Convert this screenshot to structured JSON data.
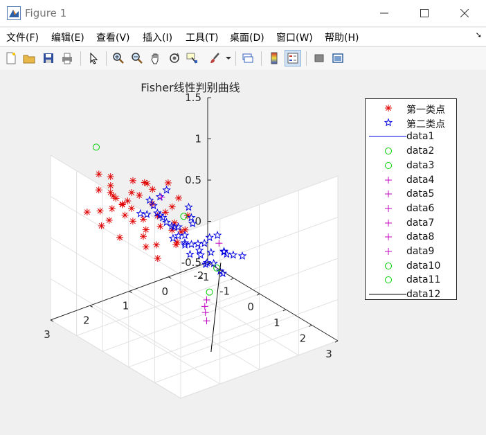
{
  "window": {
    "title": "Figure 1"
  },
  "menu": [
    "文件(F)",
    "编辑(E)",
    "查看(V)",
    "插入(I)",
    "工具(T)",
    "桌面(D)",
    "窗口(W)",
    "帮助(H)"
  ],
  "toolbar": {
    "icons": [
      "new-figure-icon",
      "open-file-icon",
      "save-icon",
      "print-icon",
      "pointer-icon",
      "zoom-in-icon",
      "zoom-out-icon",
      "pan-icon",
      "rotate-3d-icon",
      "data-cursor-icon",
      "brush-icon",
      "link-plot-icon",
      "colorbar-icon",
      "legend-icon",
      "hide-plot-tools-icon",
      "show-plot-tools-icon"
    ],
    "pressed": [
      "legend-icon"
    ]
  },
  "colors": {
    "red": "#e00000",
    "blue": "#0000e0",
    "green": "#00d000",
    "magenta": "#c000c0",
    "black": "#000000"
  },
  "chart_data": {
    "type": "scatter",
    "title": "Fisher线性判别曲线",
    "xlim": [
      -2,
      3
    ],
    "ylim": [
      -1,
      3
    ],
    "zlim": [
      -0.5,
      1.5
    ],
    "xticks": [
      -2,
      -1,
      0,
      1,
      2,
      3
    ],
    "yticks": [
      -1,
      0,
      1,
      2,
      3
    ],
    "zticks": [
      -0.5,
      0,
      0.5,
      1,
      1.5
    ],
    "xlabel": "",
    "ylabel": "",
    "zlabel": "",
    "grid": true,
    "legend_position": "right, outside",
    "series": [
      {
        "name": "第一类点",
        "marker": "asterisk",
        "color": "#e00000",
        "points": [
          [
            -1.3,
            1.8,
            0.9
          ],
          [
            -1.1,
            2.0,
            1.0
          ],
          [
            -0.9,
            2.2,
            1.2
          ],
          [
            -0.7,
            1.9,
            1.0
          ],
          [
            -0.5,
            2.1,
            0.9
          ],
          [
            -0.3,
            2.3,
            1.1
          ],
          [
            -0.1,
            2.0,
            1.2
          ],
          [
            0.1,
            1.8,
            1.1
          ],
          [
            -1.0,
            1.6,
            0.8
          ],
          [
            -0.8,
            1.7,
            0.7
          ],
          [
            -0.6,
            1.5,
            0.6
          ],
          [
            -0.4,
            1.7,
            0.8
          ],
          [
            -0.2,
            1.4,
            0.7
          ],
          [
            0.0,
            1.6,
            0.9
          ],
          [
            0.2,
            1.3,
            0.8
          ],
          [
            -1.2,
            2.3,
            1.3
          ],
          [
            -0.9,
            2.5,
            1.2
          ],
          [
            -0.6,
            2.4,
            1.4
          ],
          [
            -0.3,
            2.6,
            1.3
          ],
          [
            0.0,
            2.5,
            1.2
          ],
          [
            -1.4,
            2.1,
            0.6
          ],
          [
            -1.0,
            1.9,
            0.5
          ],
          [
            -0.7,
            1.5,
            0.5
          ],
          [
            -0.5,
            1.3,
            0.4
          ],
          [
            -0.2,
            1.1,
            0.6
          ],
          [
            0.1,
            1.2,
            0.5
          ],
          [
            -0.9,
            1.3,
            0.3
          ],
          [
            -0.6,
            1.2,
            0.2
          ],
          [
            -0.3,
            0.9,
            0.4
          ],
          [
            0.0,
            1.0,
            0.6
          ],
          [
            -1.1,
            1.5,
            1.1
          ],
          [
            -0.8,
            1.2,
            1.0
          ],
          [
            -0.5,
            1.0,
            1.1
          ],
          [
            -0.2,
            1.8,
            1.3
          ],
          [
            0.2,
            2.0,
            1.4
          ],
          [
            0.3,
            1.6,
            1.0
          ],
          [
            -1.6,
            1.7,
            0.7
          ],
          [
            -1.3,
            1.4,
            0.9
          ],
          [
            -0.4,
            0.8,
            0.9
          ],
          [
            0.1,
            0.9,
            0.8
          ],
          [
            0.3,
            1.1,
            0.7
          ],
          [
            -0.7,
            2.6,
            1.0
          ],
          [
            -0.2,
            2.7,
            1.0
          ],
          [
            -1.5,
            2.4,
            0.8
          ],
          [
            -0.8,
            0.7,
            0.7
          ]
        ]
      },
      {
        "name": "第二类点",
        "marker": "pentagram",
        "color": "#0000e0",
        "points": [
          [
            1.0,
            2.2,
            1.2
          ],
          [
            1.2,
            2.4,
            1.3
          ],
          [
            1.4,
            2.0,
            1.1
          ],
          [
            1.6,
            2.3,
            1.2
          ],
          [
            1.8,
            2.1,
            1.0
          ],
          [
            2.0,
            2.5,
            1.3
          ],
          [
            2.2,
            2.2,
            1.4
          ],
          [
            1.1,
            1.8,
            0.9
          ],
          [
            1.3,
            1.6,
            0.8
          ],
          [
            1.5,
            1.9,
            1.0
          ],
          [
            1.7,
            1.7,
            0.9
          ],
          [
            1.9,
            1.5,
            0.8
          ],
          [
            2.1,
            1.8,
            1.0
          ],
          [
            2.3,
            1.6,
            1.1
          ],
          [
            1.2,
            1.3,
            0.6
          ],
          [
            1.4,
            1.1,
            0.5
          ],
          [
            1.6,
            1.4,
            0.6
          ],
          [
            1.8,
            1.2,
            0.5
          ],
          [
            2.0,
            1.0,
            0.7
          ],
          [
            2.2,
            1.3,
            0.8
          ],
          [
            2.4,
            1.5,
            0.9
          ],
          [
            2.5,
            1.1,
            0.8
          ],
          [
            0.8,
            2.0,
            1.1
          ],
          [
            0.9,
            2.4,
            1.4
          ],
          [
            1.1,
            2.6,
            1.3
          ],
          [
            1.5,
            2.7,
            1.5
          ],
          [
            1.9,
            2.8,
            1.7
          ],
          [
            2.4,
            2.4,
            1.6
          ],
          [
            2.6,
            2.0,
            1.2
          ],
          [
            1.3,
            2.9,
            1.4
          ],
          [
            1.7,
            2.5,
            1.3
          ],
          [
            2.1,
            2.6,
            1.2
          ],
          [
            0.9,
            1.5,
            0.7
          ],
          [
            1.0,
            1.2,
            0.6
          ],
          [
            2.7,
            1.7,
            1.0
          ],
          [
            1.6,
            1.0,
            0.4
          ],
          [
            2.3,
            1.9,
            0.8
          ],
          [
            1.4,
            2.3,
            1.6
          ],
          [
            1.8,
            1.9,
            1.2
          ],
          [
            2.0,
            2.1,
            0.9
          ]
        ]
      },
      {
        "name": "data1",
        "marker": "line",
        "color": "#0000e0",
        "points": []
      },
      {
        "name": "data2",
        "marker": "circle",
        "color": "#00d000",
        "points": [
          [
            -1.0,
            2.5,
            1.7
          ]
        ]
      },
      {
        "name": "data3",
        "marker": "circle",
        "color": "#00d000",
        "points": [
          [
            0.4,
            1.2,
            0.9
          ]
        ]
      },
      {
        "name": "data4",
        "marker": "plus",
        "color": "#c000c0",
        "points": [
          [
            0.3,
            1.7,
            1.2
          ]
        ]
      },
      {
        "name": "data5",
        "marker": "plus",
        "color": "#c000c0",
        "points": [
          [
            1.0,
            0.7,
            0.6
          ]
        ]
      },
      {
        "name": "data6",
        "marker": "plus",
        "color": "#c000c0",
        "points": [
          [
            -0.53,
            0.0,
            -0.5
          ]
        ]
      },
      {
        "name": "data7",
        "marker": "plus",
        "color": "#c000c0",
        "points": [
          [
            -0.3,
            0.2,
            -0.5
          ]
        ]
      },
      {
        "name": "data8",
        "marker": "plus",
        "color": "#c000c0",
        "points": [
          [
            -0.05,
            0.35,
            -0.5
          ]
        ]
      },
      {
        "name": "data9",
        "marker": "plus",
        "color": "#c000c0",
        "points": [
          [
            0.3,
            0.55,
            -0.5
          ]
        ]
      },
      {
        "name": "data10",
        "marker": "circle",
        "color": "#00d000",
        "points": [
          [
            -1.65,
            -1.0,
            -0.5
          ]
        ]
      },
      {
        "name": "data11",
        "marker": "circle",
        "color": "#00d000",
        "points": [
          [
            -0.8,
            -0.25,
            -0.5
          ]
        ]
      },
      {
        "name": "data12",
        "marker": "line",
        "color": "#000000",
        "points": [
          [
            -1.8,
            -1.2,
            -0.5
          ],
          [
            1.6,
            1.3,
            -0.5
          ]
        ]
      }
    ]
  }
}
